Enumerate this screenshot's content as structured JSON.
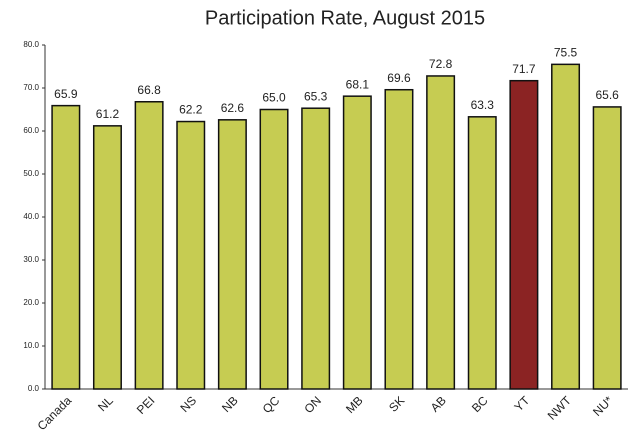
{
  "chart_data": {
    "type": "bar",
    "title": "Participation Rate, August 2015",
    "categories": [
      "Canada",
      "NL",
      "PEI",
      "NS",
      "NB",
      "QC",
      "ON",
      "MB",
      "SK",
      "AB",
      "BC",
      "YT",
      "NWT",
      "NU*"
    ],
    "values": [
      65.9,
      61.2,
      66.8,
      62.2,
      62.6,
      65.0,
      65.3,
      68.1,
      69.6,
      72.8,
      63.3,
      71.7,
      75.5,
      65.6
    ],
    "value_labels": [
      "65.9",
      "61.2",
      "66.8",
      "62.2",
      "62.6",
      "65.0",
      "65.3",
      "68.1",
      "69.6",
      "72.8",
      "63.3",
      "71.7",
      "75.5",
      "65.6"
    ],
    "colors": [
      "#c6cc52",
      "#c6cc52",
      "#c6cc52",
      "#c6cc52",
      "#c6cc52",
      "#c6cc52",
      "#c6cc52",
      "#c6cc52",
      "#c6cc52",
      "#c6cc52",
      "#c6cc52",
      "#8b2323",
      "#c6cc52",
      "#c6cc52"
    ],
    "ylim": [
      0,
      80
    ],
    "yticks": [
      {
        "value": 0,
        "label": "0.0"
      },
      {
        "value": 10,
        "label": "10.0"
      },
      {
        "value": 20,
        "label": "20.0"
      },
      {
        "value": 30,
        "label": "30.0"
      },
      {
        "value": 40,
        "label": "40.0"
      },
      {
        "value": 50,
        "label": "50.0"
      },
      {
        "value": 60,
        "label": "60.0"
      },
      {
        "value": 70,
        "label": "70.0"
      },
      {
        "value": 80,
        "label": "80.0"
      }
    ],
    "grid": false
  }
}
